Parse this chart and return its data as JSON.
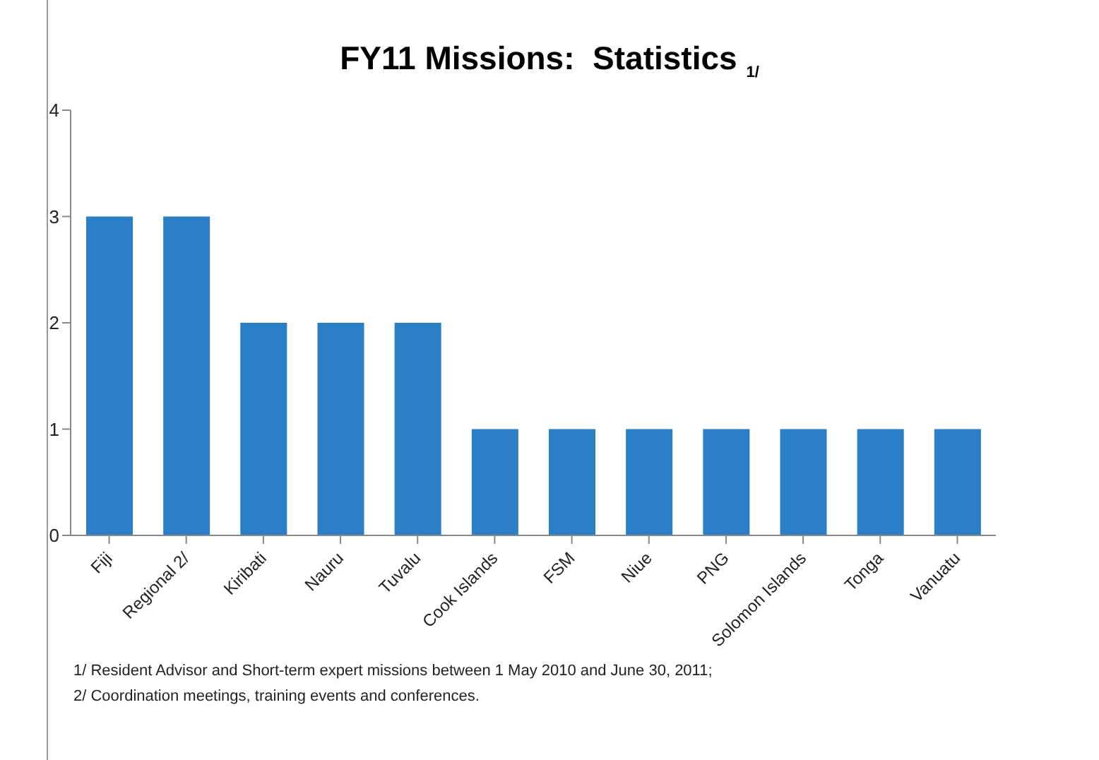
{
  "chart_data": {
    "type": "bar",
    "title": "FY11 Missions:  Statistics $_{1/}$",
    "categories": [
      "Fiji",
      "Regional 2/",
      "Kiribati",
      "Nauru",
      "Tuvalu",
      "Cook Islands",
      "FSM",
      "Niue",
      "PNG",
      "Solomon Islands",
      "Tonga",
      "Vanuatu"
    ],
    "values": [
      3,
      3,
      2,
      2,
      2,
      1,
      1,
      1,
      1,
      1,
      1,
      1
    ],
    "color": "#2a7fc6",
    "ylim": [
      0,
      4
    ],
    "yticks": [
      0,
      1,
      2,
      3,
      4
    ],
    "grid": false,
    "legend": false,
    "annotations": [
      "1/ Resident Advisor and Short-term expert missions between 1 May 2010 and June 30, 2011;",
      "2/ Coordination meetings, training events and conferences."
    ]
  }
}
